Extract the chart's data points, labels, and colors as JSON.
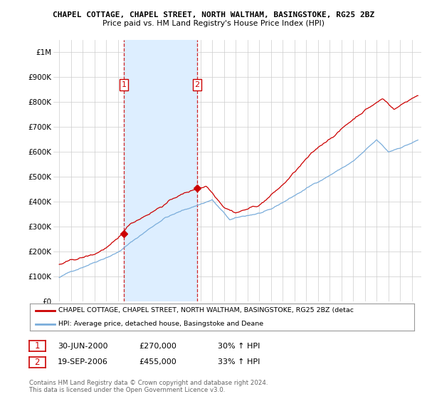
{
  "title1": "CHAPEL COTTAGE, CHAPEL STREET, NORTH WALTHAM, BASINGSTOKE, RG25 2BZ",
  "title2": "Price paid vs. HM Land Registry's House Price Index (HPI)",
  "legend_red": "CHAPEL COTTAGE, CHAPEL STREET, NORTH WALTHAM, BASINGSTOKE, RG25 2BZ (detac",
  "legend_blue": "HPI: Average price, detached house, Basingstoke and Deane",
  "footnote1": "Contains HM Land Registry data © Crown copyright and database right 2024.",
  "footnote2": "This data is licensed under the Open Government Licence v3.0.",
  "sale1_date": "30-JUN-2000",
  "sale1_price": "£270,000",
  "sale1_hpi": "30% ↑ HPI",
  "sale2_date": "19-SEP-2006",
  "sale2_price": "£455,000",
  "sale2_hpi": "33% ↑ HPI",
  "red_color": "#cc0000",
  "blue_color": "#7aaddb",
  "shade_color": "#ddeeff",
  "vline_color": "#cc0000",
  "grid_color": "#cccccc",
  "bg_color": "#ffffff",
  "ylim": [
    0,
    1050000
  ],
  "yticks": [
    0,
    100000,
    200000,
    300000,
    400000,
    500000,
    600000,
    700000,
    800000,
    900000,
    1000000
  ],
  "ytick_labels": [
    "£0",
    "£100K",
    "£200K",
    "£300K",
    "£400K",
    "£500K",
    "£600K",
    "£700K",
    "£800K",
    "£900K",
    "£1M"
  ],
  "sale1_x": 2000.5,
  "sale2_x": 2006.72,
  "sale1_y": 270000,
  "sale2_y": 455000,
  "xmin": 1994.5,
  "xmax": 2025.8,
  "xticks": [
    1995,
    1996,
    1997,
    1998,
    1999,
    2000,
    2001,
    2002,
    2003,
    2004,
    2005,
    2006,
    2007,
    2008,
    2009,
    2010,
    2011,
    2012,
    2013,
    2014,
    2015,
    2016,
    2017,
    2018,
    2019,
    2020,
    2021,
    2022,
    2023,
    2024,
    2025
  ]
}
